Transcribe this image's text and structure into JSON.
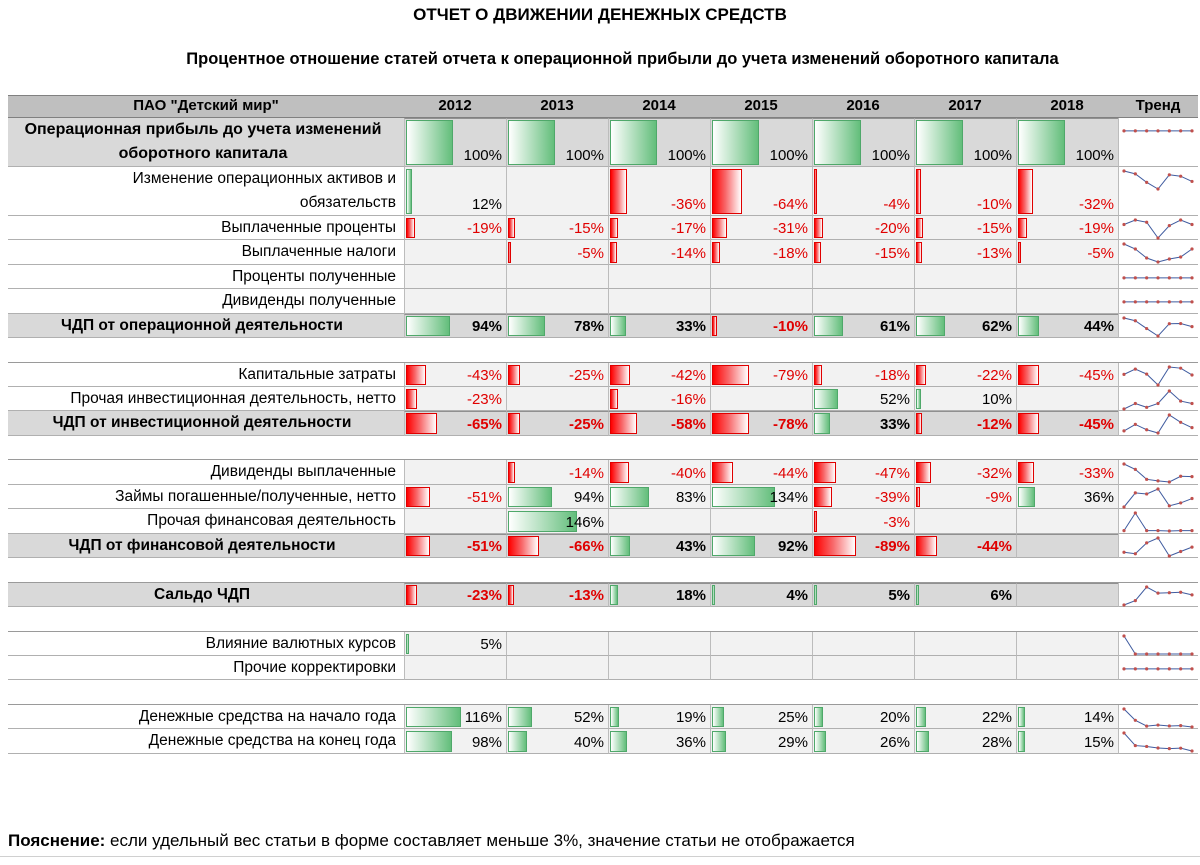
{
  "title": "ОТЧЕТ О ДВИЖЕНИИ ДЕНЕЖНЫХ СРЕДСТВ",
  "subtitle": "Процентное отношение статей отчета к операционной прибыли до учета изменений оборотного капитала",
  "company": "ПАО \"Детский мир\"",
  "years": [
    "2012",
    "2013",
    "2014",
    "2015",
    "2016",
    "2017",
    "2018"
  ],
  "trend_header": "Тренд",
  "colors": {
    "header_bg": "#bfbfbf",
    "total_bg": "#d9d9d9",
    "cell_bg": "#f2f2f2",
    "positive_bar": "#63be7b",
    "negative_bar": "#ff0000",
    "negative_text": "#e00000",
    "trend_line": "#3f5b9f",
    "trend_marker": "#c0504d"
  },
  "rows": [
    {
      "label": "Операционная прибыль до учета изменений оборотного капитала",
      "line1": "Операционная прибыль до учета изменений",
      "line2": "оборотного капитала",
      "kind": "big",
      "values": [
        100,
        100,
        100,
        100,
        100,
        100,
        100
      ],
      "display": [
        "100%",
        "100%",
        "100%",
        "100%",
        "100%",
        "100%",
        "100%"
      ]
    },
    {
      "label": "Изменение операционных активов и обязательств",
      "line1": "Изменение операционных активов и",
      "line2": "обязательств",
      "kind": "double",
      "values": [
        12,
        null,
        -36,
        -64,
        -4,
        -10,
        -32
      ],
      "display": [
        "12%",
        "",
        "-36%",
        "-64%",
        "-4%",
        "-10%",
        "-32%"
      ]
    },
    {
      "label": "Выплаченные проценты",
      "kind": "normal",
      "values": [
        -19,
        -15,
        -17,
        -31,
        -20,
        -15,
        -19
      ],
      "display": [
        "-19%",
        "-15%",
        "-17%",
        "-31%",
        "-20%",
        "-15%",
        "-19%"
      ]
    },
    {
      "label": "Выплаченные налоги",
      "kind": "normal",
      "values": [
        null,
        -5,
        -14,
        -18,
        -15,
        -13,
        -5
      ],
      "display": [
        "",
        "-5%",
        "-14%",
        "-18%",
        "-15%",
        "-13%",
        "-5%"
      ]
    },
    {
      "label": "Проценты полученные",
      "kind": "normal",
      "values": [
        null,
        null,
        null,
        null,
        null,
        null,
        null
      ],
      "display": [
        "",
        "",
        "",
        "",
        "",
        "",
        ""
      ]
    },
    {
      "label": "Дивиденды полученные",
      "kind": "normal",
      "values": [
        null,
        null,
        null,
        null,
        null,
        null,
        null
      ],
      "display": [
        "",
        "",
        "",
        "",
        "",
        "",
        ""
      ]
    },
    {
      "label": "ЧДП от операционной деятельности",
      "kind": "total",
      "values": [
        94,
        78,
        33,
        -10,
        61,
        62,
        44
      ],
      "display": [
        "94%",
        "78%",
        "33%",
        "-10%",
        "61%",
        "62%",
        "44%"
      ]
    },
    {
      "kind": "spacer"
    },
    {
      "label": "Капитальные затраты",
      "kind": "normal",
      "values": [
        -43,
        -25,
        -42,
        -79,
        -18,
        -22,
        -45
      ],
      "display": [
        "-43%",
        "-25%",
        "-42%",
        "-79%",
        "-18%",
        "-22%",
        "-45%"
      ]
    },
    {
      "label": "Прочая инвестиционная деятельность, нетто",
      "kind": "normal",
      "values": [
        -23,
        null,
        -16,
        null,
        52,
        10,
        null
      ],
      "display": [
        "-23%",
        "",
        "-16%",
        "",
        "52%",
        "10%",
        ""
      ]
    },
    {
      "label": "ЧДП от инвестиционной деятельности",
      "kind": "total",
      "values": [
        -65,
        -25,
        -58,
        -78,
        33,
        -12,
        -45
      ],
      "display": [
        "-65%",
        "-25%",
        "-58%",
        "-78%",
        "33%",
        "-12%",
        "-45%"
      ]
    },
    {
      "kind": "spacer"
    },
    {
      "label": "Дивиденды выплаченные",
      "kind": "normal",
      "values": [
        null,
        -14,
        -40,
        -44,
        -47,
        -32,
        -33
      ],
      "display": [
        "",
        "-14%",
        "-40%",
        "-44%",
        "-47%",
        "-32%",
        "-33%"
      ]
    },
    {
      "label": "Займы погашенные/полученные, нетто",
      "kind": "normal",
      "values": [
        -51,
        94,
        83,
        134,
        -39,
        -9,
        36
      ],
      "display": [
        "-51%",
        "94%",
        "83%",
        "134%",
        "-39%",
        "-9%",
        "36%"
      ]
    },
    {
      "label": "Прочая финансовая деятельность",
      "kind": "normal",
      "values": [
        null,
        146,
        null,
        null,
        -3,
        null,
        null
      ],
      "display": [
        "",
        "146%",
        "",
        "",
        "-3%",
        "",
        ""
      ]
    },
    {
      "label": "ЧДП от финансовой деятельности",
      "kind": "total",
      "values": [
        -51,
        -66,
        43,
        92,
        -89,
        -44,
        null
      ],
      "display": [
        "-51%",
        "-66%",
        "43%",
        "92%",
        "-89%",
        "-44%",
        ""
      ]
    },
    {
      "kind": "spacer"
    },
    {
      "label": "Сальдо ЧДП",
      "kind": "total",
      "values": [
        -23,
        -13,
        18,
        4,
        5,
        6,
        null
      ],
      "display": [
        "-23%",
        "-13%",
        "18%",
        "4%",
        "5%",
        "6%",
        ""
      ]
    },
    {
      "kind": "spacer"
    },
    {
      "label": "Влияние валютных курсов",
      "kind": "normal",
      "values": [
        5,
        null,
        null,
        null,
        null,
        null,
        null
      ],
      "display": [
        "5%",
        "",
        "",
        "",
        "",
        "",
        ""
      ]
    },
    {
      "label": "Прочие корректировки",
      "kind": "normal",
      "values": [
        null,
        null,
        null,
        null,
        null,
        null,
        null
      ],
      "display": [
        "",
        "",
        "",
        "",
        "",
        "",
        ""
      ]
    },
    {
      "kind": "spacer"
    },
    {
      "label": "Денежные средства на начало года",
      "kind": "normal",
      "values": [
        116,
        52,
        19,
        25,
        20,
        22,
        14
      ],
      "display": [
        "116%",
        "52%",
        "19%",
        "25%",
        "20%",
        "22%",
        "14%"
      ]
    },
    {
      "label": "Денежные средства на конец года",
      "kind": "normal",
      "values": [
        98,
        40,
        36,
        29,
        26,
        28,
        15
      ],
      "display": [
        "98%",
        "40%",
        "36%",
        "29%",
        "26%",
        "28%",
        "15%"
      ]
    }
  ],
  "note": {
    "bold": "Пояснение:",
    "text": " если удельный вес статьи в форме составляет меньше 3%, значение статьи не отображается"
  }
}
